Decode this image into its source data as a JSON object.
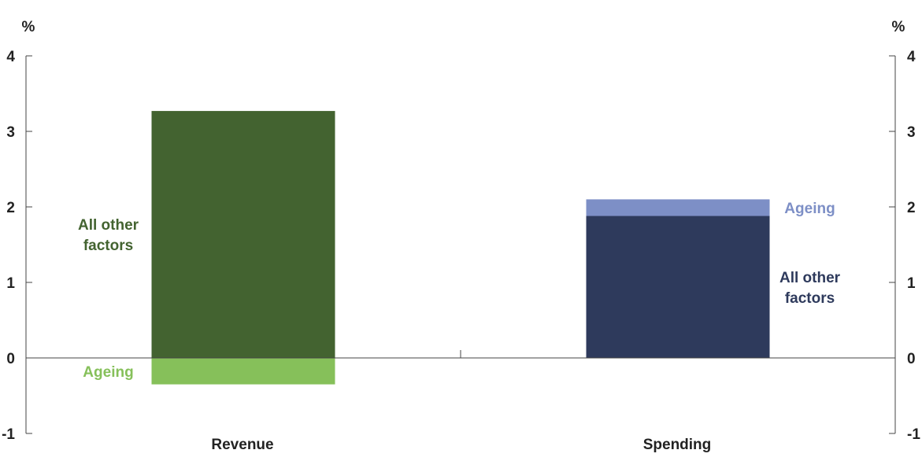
{
  "chart_data": {
    "type": "bar",
    "stacked": true,
    "title": "",
    "xlabel": "",
    "ylabel": "",
    "y_unit_left": "%",
    "y_unit_right": "%",
    "ylim": [
      -1,
      4
    ],
    "yticks": [
      4,
      3,
      2,
      1,
      0,
      -1
    ],
    "dual_axis": true,
    "grid": false,
    "categories": [
      "Revenue",
      "Spending"
    ],
    "segments": [
      {
        "category": "Revenue",
        "label_lines": [
          "All other",
          "factors"
        ],
        "value": 3.27,
        "color": "#436330",
        "label_color": "#436330",
        "label_side": "left"
      },
      {
        "category": "Revenue",
        "label_lines": [
          "Ageing"
        ],
        "value": -0.35,
        "color": "#86c05a",
        "label_color": "#86c05a",
        "label_side": "left"
      },
      {
        "category": "Spending",
        "label_lines": [
          "All other",
          "factors"
        ],
        "value": 1.88,
        "color": "#2e3a5c",
        "label_color": "#2e3a5c",
        "label_side": "right"
      },
      {
        "category": "Spending",
        "label_lines": [
          "Ageing"
        ],
        "value": 0.22,
        "color": "#7d8fc6",
        "label_color": "#7d8fc6",
        "label_side": "right"
      }
    ]
  }
}
